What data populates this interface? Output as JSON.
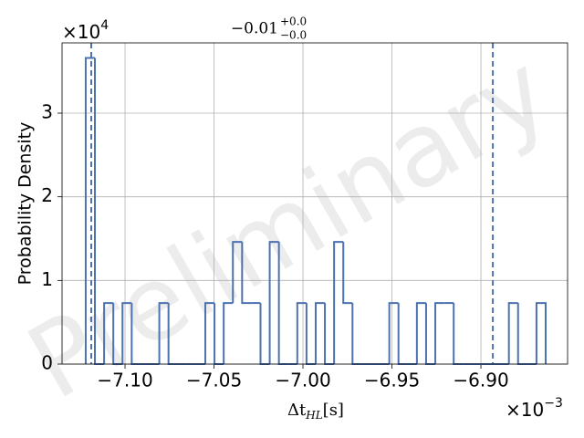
{
  "chart_data": {
    "type": "histogram",
    "title": {
      "main": "−0.01",
      "upper": "+0.0",
      "lower": "−0.0"
    },
    "xlabel": {
      "main": "Δt",
      "sub": "HL",
      "unit": "[s]"
    },
    "ylabel": "Probability Density",
    "x_offset": {
      "base": "×10",
      "exp": "−3"
    },
    "y_offset": {
      "base": "×10",
      "exp": "4"
    },
    "watermark": "Preliminary",
    "color": "#4c72b0",
    "grid": true,
    "bins": [
      -7.1221,
      -7.11693,
      -7.11176,
      -7.10659,
      -7.10142,
      -7.09625,
      -7.09108,
      -7.08591,
      -7.08074,
      -7.07557,
      -7.0704,
      -7.06523,
      -7.06006,
      -7.05489,
      -7.04972,
      -7.04455,
      -7.03938,
      -7.03421,
      -7.02904,
      -7.02387,
      -7.0187,
      -7.01353,
      -7.00836,
      -7.00319,
      -6.99802,
      -6.99285,
      -6.98768,
      -6.98251,
      -6.97734,
      -6.97217,
      -6.967,
      -6.96183,
      -6.95666,
      -6.95149,
      -6.94632,
      -6.94115,
      -6.93598,
      -6.93081,
      -6.92564,
      -6.92047,
      -6.9153,
      -6.91013,
      -6.90496,
      -6.89979,
      -6.89462,
      -6.88945,
      -6.88428,
      -6.87911,
      -6.87394,
      -6.86877,
      -6.8636
    ],
    "values": [
      3.66,
      0,
      0.73,
      0,
      0.73,
      0,
      0,
      0,
      0.73,
      0,
      0,
      0,
      0,
      0.73,
      0,
      0.73,
      1.46,
      0.73,
      0.73,
      0,
      1.46,
      0,
      0,
      0.73,
      0,
      0.73,
      0,
      1.46,
      0.73,
      0,
      0,
      0,
      0,
      0.73,
      0,
      0,
      0.73,
      0,
      0.73,
      0.73,
      0,
      0,
      0,
      0,
      0,
      0,
      0.73,
      0,
      0,
      0.73
    ],
    "vlines": [
      -7.119,
      -6.8933
    ],
    "xlim": [
      -7.1354,
      -6.8513
    ],
    "ylim": [
      0,
      3.84
    ],
    "xticks": [
      {
        "value": -7.1,
        "label": "−7.10"
      },
      {
        "value": -7.05,
        "label": "−7.05"
      },
      {
        "value": -7,
        "label": "−7.00"
      },
      {
        "value": -6.95,
        "label": "−6.95"
      },
      {
        "value": -6.9,
        "label": "−6.90"
      }
    ],
    "yticks": [
      0,
      1,
      2,
      3
    ]
  }
}
